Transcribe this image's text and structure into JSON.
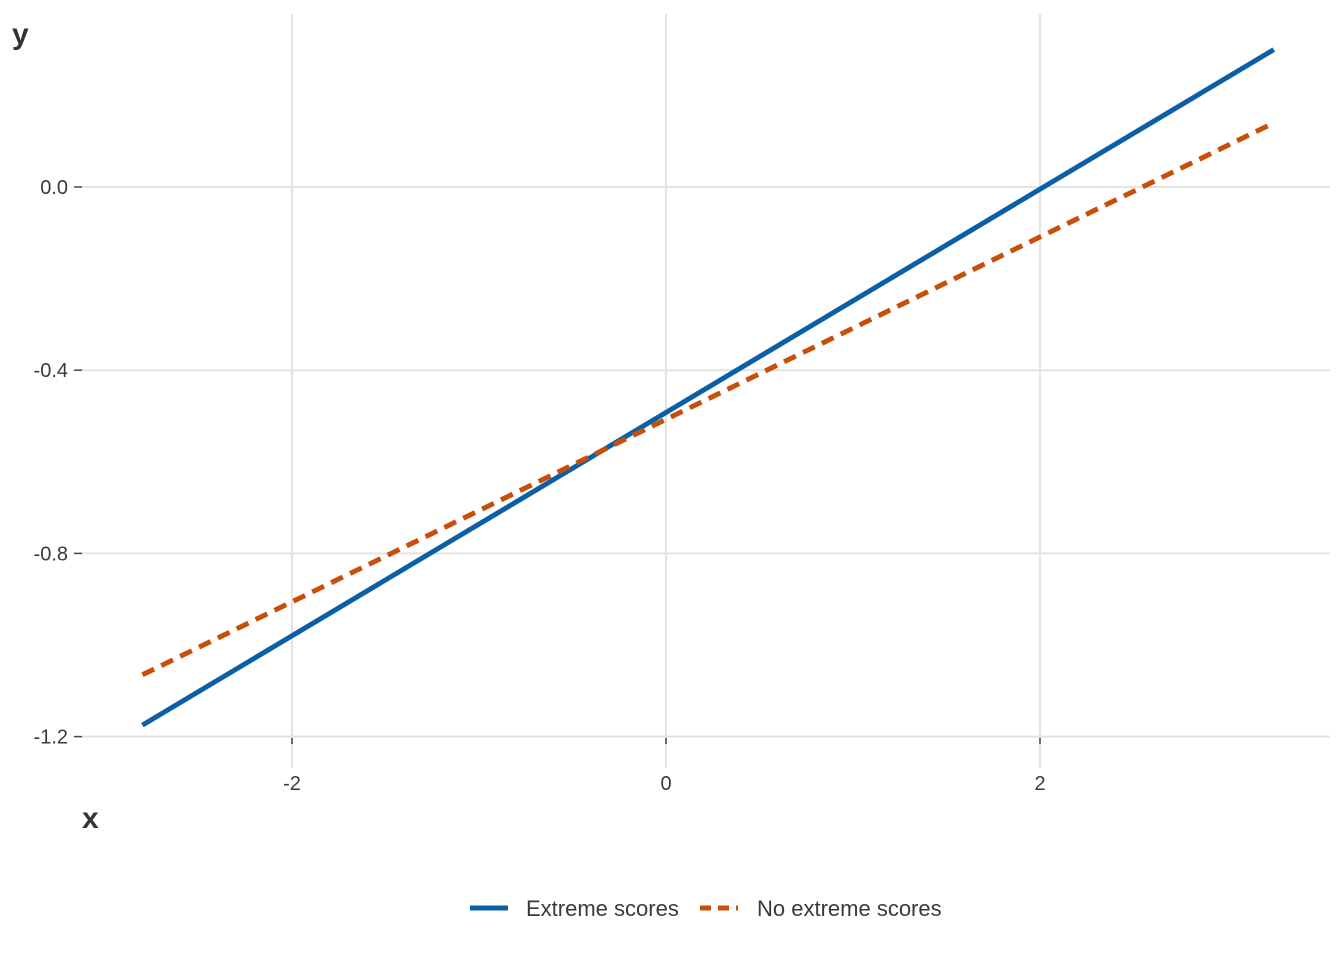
{
  "chart_data": {
    "type": "line",
    "xlabel": "x",
    "ylabel": "y",
    "xlim": [
      -3.25,
      3.5
    ],
    "ylim": [
      -1.25,
      0.38
    ],
    "x_ticks": [
      {
        "value": -2,
        "label": "-2"
      },
      {
        "value": 0,
        "label": "0"
      },
      {
        "value": 2,
        "label": "2"
      }
    ],
    "y_ticks": [
      {
        "value": 0.0,
        "label": "0.0"
      },
      {
        "value": -0.4,
        "label": "-0.4"
      },
      {
        "value": -0.8,
        "label": "-0.8"
      },
      {
        "value": -1.2,
        "label": "-1.2"
      }
    ],
    "grid": true,
    "legend_position": "bottom",
    "series": [
      {
        "name": "Extreme scores",
        "color": "#0b5fa5",
        "line_style": "solid",
        "x": [
          -2.8,
          3.25
        ],
        "y": [
          -1.175,
          0.3
        ]
      },
      {
        "name": "No extreme scores",
        "color": "#c84e0a",
        "line_style": "dashed",
        "x": [
          -2.8,
          3.25
        ],
        "y": [
          -1.065,
          0.14
        ]
      }
    ]
  }
}
